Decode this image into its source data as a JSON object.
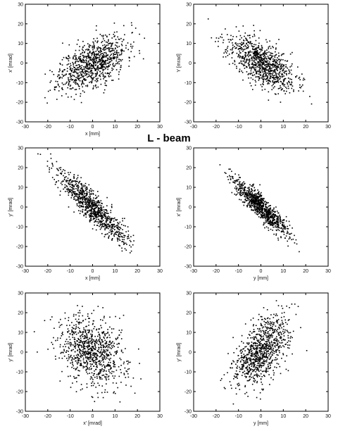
{
  "figure_title": "L - beam",
  "chart_data": [
    {
      "type": "scatter",
      "xlabel": "x [mm]",
      "ylabel": "x' [mrad]",
      "xlim": [
        -30,
        30
      ],
      "ylim": [
        -30,
        30
      ],
      "xticks": [
        -30,
        -20,
        -10,
        0,
        10,
        20,
        30
      ],
      "yticks": [
        -30,
        -20,
        -10,
        0,
        10,
        20,
        30
      ],
      "correlation": 0.55,
      "spread": [
        7.5,
        7
      ],
      "n_points": 900,
      "seed": 11,
      "grid": false
    },
    {
      "type": "scatter",
      "xlabel": "",
      "ylabel": "Y [mrad]",
      "xlim": [
        -30,
        30
      ],
      "ylim": [
        -30,
        30
      ],
      "xticks": [
        -30,
        -20,
        -10,
        0,
        10,
        20,
        30
      ],
      "yticks": [
        -30,
        -20,
        -10,
        0,
        10,
        20,
        30
      ],
      "correlation": -0.65,
      "spread": [
        7.5,
        7
      ],
      "n_points": 900,
      "seed": 23,
      "grid": false
    },
    {
      "type": "scatter",
      "xlabel": "x [mm]",
      "ylabel": "y' [mrad]",
      "xlim": [
        -30,
        30
      ],
      "ylim": [
        -30,
        30
      ],
      "xticks": [
        -30,
        -20,
        -10,
        0,
        10,
        20,
        30
      ],
      "yticks": [
        -30,
        -20,
        -10,
        0,
        10,
        20,
        30
      ],
      "correlation": -0.9,
      "spread": [
        7.5,
        9
      ],
      "n_points": 900,
      "seed": 37,
      "grid": false
    },
    {
      "type": "scatter",
      "xlabel": "y [mm]",
      "ylabel": "x' [mrad]",
      "xlim": [
        -30,
        30
      ],
      "ylim": [
        -30,
        30
      ],
      "xticks": [
        -30,
        -20,
        -10,
        0,
        10,
        20,
        30
      ],
      "yticks": [
        -30,
        -20,
        -10,
        0,
        10,
        20,
        30
      ],
      "correlation": -0.9,
      "spread": [
        6,
        7
      ],
      "n_points": 900,
      "seed": 41,
      "grid": false
    },
    {
      "type": "scatter",
      "xlabel": "x' [mrad]",
      "ylabel": "y' [mrad]",
      "xlim": [
        -30,
        30
      ],
      "ylim": [
        -30,
        30
      ],
      "xticks": [
        -30,
        -20,
        -10,
        0,
        10,
        20,
        30
      ],
      "yticks": [
        -30,
        -20,
        -10,
        0,
        10,
        20,
        30
      ],
      "correlation": -0.25,
      "spread": [
        7.5,
        9
      ],
      "n_points": 900,
      "seed": 53,
      "grid": false
    },
    {
      "type": "scatter",
      "xlabel": "y [mm]",
      "ylabel": "y' [mrad]",
      "xlim": [
        -30,
        30
      ],
      "ylim": [
        -30,
        30
      ],
      "xticks": [
        -30,
        -20,
        -10,
        0,
        10,
        20,
        30
      ],
      "yticks": [
        -30,
        -20,
        -10,
        0,
        10,
        20,
        30
      ],
      "correlation": 0.55,
      "spread": [
        6,
        9
      ],
      "n_points": 900,
      "seed": 67,
      "grid": false
    }
  ]
}
